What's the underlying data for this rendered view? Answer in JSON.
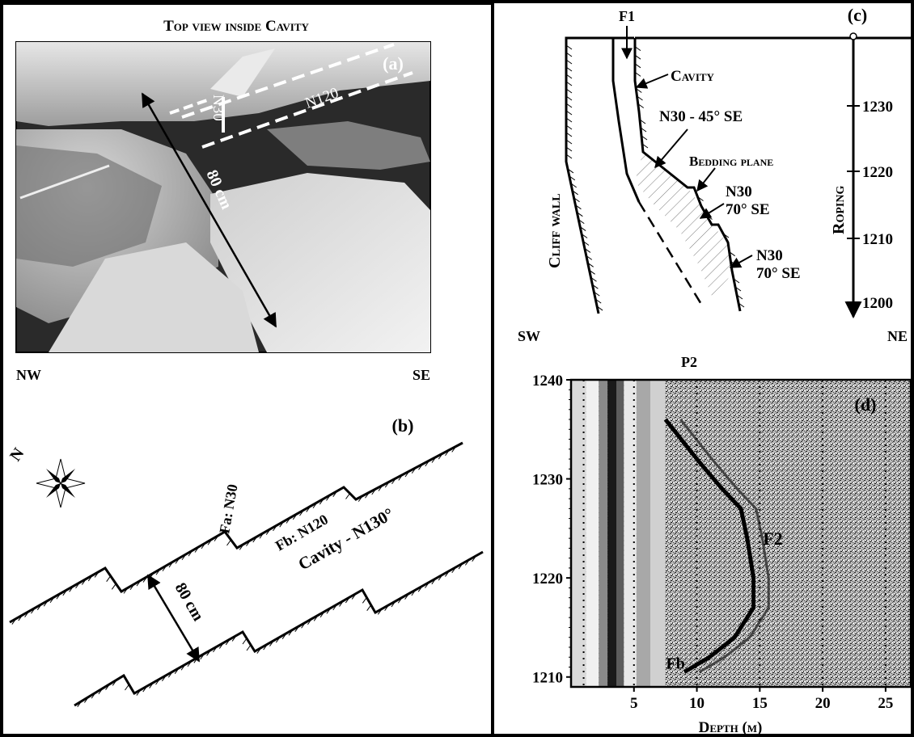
{
  "panel_a": {
    "title": "Top view inside Cavity",
    "label": "(a)",
    "n30": "N30",
    "n120": "N120",
    "width": "80 cm",
    "left_dir": "NW",
    "right_dir": "SE"
  },
  "panel_b": {
    "label": "(b)",
    "north": "N",
    "fa": "Fa: N30",
    "fb": "Fb: N120",
    "cavity": "Cavity - N130°",
    "width": "80 cm"
  },
  "panel_c": {
    "label": "(c)",
    "f1": "F1",
    "cavity": "Cavity",
    "n30_45": "N30 - 45° SE",
    "bedding": "Bedding plane",
    "n30_70a_1": "N30",
    "n30_70a_2": "70° SE",
    "n30_70b_1": "N30",
    "n30_70b_2": "70° SE",
    "cliff": "Cliff wall",
    "roping": "Roping",
    "left_dir": "SW",
    "right_dir": "NE",
    "scale_ticks": [
      "1230",
      "1220",
      "1210",
      "1200"
    ]
  },
  "panel_d": {
    "label": "(d)",
    "title": "P2",
    "f2": "F2",
    "fb": "Fb",
    "xlabel": "Depth (m)"
  },
  "chart_data": {
    "type": "heatmap",
    "title": "P2",
    "xlabel": "Depth (m)",
    "ylabel": "",
    "x_ticks": [
      5,
      10,
      15,
      20,
      25
    ],
    "y_ticks": [
      1240,
      1230,
      1220,
      1210
    ],
    "xlim": [
      0,
      27
    ],
    "ylim": [
      1209,
      1240
    ],
    "grid": "vertical dotted lines at x ticks",
    "annotations": [
      {
        "text": "F2",
        "x": 15,
        "y": 1224
      },
      {
        "text": "Fb",
        "x": 10,
        "y": 1211.5
      }
    ],
    "series": [
      {
        "name": "",
        "x": [
          7.5,
          10,
          12,
          13.5,
          14,
          14.5,
          14.5,
          13.5,
          13,
          11,
          9
        ],
        "y": [
          1236,
          1232,
          1229,
          1227,
          1224,
          1220,
          1217,
          1215,
          1214,
          1212,
          1210.5
        ]
      }
    ]
  }
}
